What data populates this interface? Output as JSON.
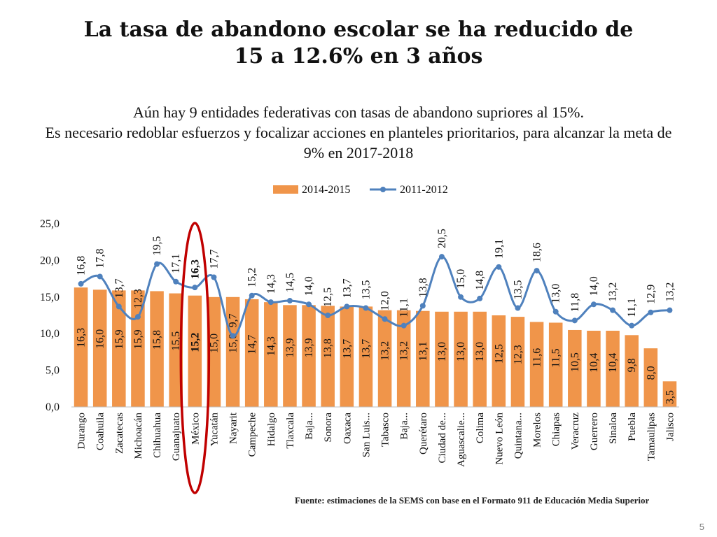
{
  "slide": {
    "title_line1": "La tasa de abandono escolar se ha reducido de",
    "title_line2": "15 a 12.6% en 3 años",
    "subtitle_line1": "Aún hay 9 entidades federativas con tasas de abandono supriores al 15%.",
    "subtitle_line2": "Es necesario redoblar esfuerzos y focalizar acciones en planteles prioritarios, para alcanzar la meta de 9% en 2017-2018",
    "source": "Fuente: estimaciones de la SEMS con base en el Formato 911 de Educación Media Superior",
    "page_number": "5"
  },
  "colors": {
    "bar": "#F0954A",
    "line": "#4F81BD",
    "highlight": "#C00000",
    "text": "#111111"
  },
  "chart_data": {
    "type": "bar",
    "title": "",
    "xlabel": "",
    "ylabel": "",
    "ylim": [
      0,
      25
    ],
    "yticks": [
      "0,0",
      "5,0",
      "10,0",
      "15,0",
      "20,0",
      "25,0"
    ],
    "legend_position": "top-center",
    "highlighted_category": "México",
    "categories": [
      "Durango",
      "Coahuila",
      "Zacatecas",
      "Michoacán",
      "Chihuahua",
      "Guanajuato",
      "México",
      "Yucatán",
      "Nayarit",
      "Campeche",
      "Hidalgo",
      "Tlaxcala",
      "Baja...",
      "Sonora",
      "Oaxaca",
      "San Luis...",
      "Tabasco",
      "Baja...",
      "Querétaro",
      "Ciudad de...",
      "Aguascalie...",
      "Colima",
      "Nuevo León",
      "Quintana...",
      "Morelos",
      "Chiapas",
      "Veracruz",
      "Guerrero",
      "Sinaloa",
      "Puebla",
      "Tamaulipas",
      "Jalisco"
    ],
    "series": [
      {
        "name": "2014-2015",
        "kind": "bar",
        "values": [
          16.3,
          16.0,
          15.9,
          15.9,
          15.8,
          15.5,
          15.2,
          15.0,
          15.0,
          14.7,
          14.3,
          13.9,
          13.9,
          13.8,
          13.7,
          13.7,
          13.2,
          13.2,
          13.1,
          13.0,
          13.0,
          13.0,
          12.5,
          12.3,
          11.6,
          11.5,
          10.5,
          10.4,
          10.4,
          9.8,
          8.0,
          3.5
        ],
        "labels": [
          "16,3",
          "16,0",
          "15,9",
          "15,9",
          "15,8",
          "15,5",
          "15,2",
          "15,0",
          "15,0",
          "14,7",
          "14,3",
          "13,9",
          "13,9",
          "13,8",
          "13,7",
          "13,7",
          "13,2",
          "13,2",
          "13,1",
          "13,0",
          "13,0",
          "13,0",
          "12,5",
          "12,3",
          "11,6",
          "11,5",
          "10,5",
          "10,4",
          "10,4",
          "9,8",
          "8,0",
          "3,5"
        ]
      },
      {
        "name": "2011-2012",
        "kind": "line",
        "values": [
          16.8,
          17.8,
          13.7,
          12.3,
          19.5,
          17.1,
          16.3,
          17.7,
          9.7,
          15.2,
          14.3,
          14.5,
          14.0,
          12.5,
          13.7,
          13.5,
          12.0,
          11.1,
          13.8,
          20.5,
          15.0,
          14.8,
          19.1,
          13.5,
          18.6,
          13.0,
          11.8,
          14.0,
          13.2,
          11.1,
          12.9,
          13.2
        ],
        "labels": [
          "16,8",
          "17,8",
          "13,7",
          "12,3",
          "19,5",
          "17,1",
          "16,3",
          "17,7",
          "9,7",
          "15,2",
          "14,3",
          "14,5",
          "14,0",
          "12,5",
          "13,7",
          "13,5",
          "12,0",
          "11,1",
          "13,8",
          "20,5",
          "15,0",
          "14,8",
          "19,1",
          "13,5",
          "18,6",
          "13,0",
          "11,8",
          "14,0",
          "13,2",
          "11,1",
          "12,9",
          "13,2"
        ]
      }
    ]
  }
}
